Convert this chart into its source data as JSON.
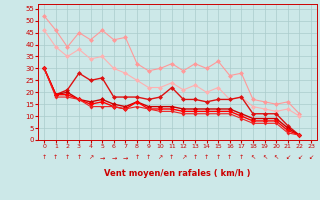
{
  "bg_color": "#cce8e8",
  "grid_color": "#aacccc",
  "xlabel": "Vent moyen/en rafales ( km/h )",
  "xlim": [
    -0.5,
    23.5
  ],
  "ylim": [
    0,
    57
  ],
  "yticks": [
    0,
    5,
    10,
    15,
    20,
    25,
    30,
    35,
    40,
    45,
    50,
    55
  ],
  "xticks": [
    0,
    1,
    2,
    3,
    4,
    5,
    6,
    7,
    8,
    9,
    10,
    11,
    12,
    13,
    14,
    15,
    16,
    17,
    18,
    19,
    20,
    21,
    22,
    23
  ],
  "series": [
    {
      "color": "#ff9999",
      "linewidth": 0.8,
      "markersize": 2.5,
      "y": [
        52,
        46,
        39,
        45,
        42,
        46,
        42,
        43,
        32,
        29,
        30,
        32,
        29,
        32,
        30,
        33,
        27,
        28,
        17,
        16,
        15,
        16,
        11
      ]
    },
    {
      "color": "#ffb0b0",
      "linewidth": 0.8,
      "markersize": 2.5,
      "y": [
        46,
        39,
        35,
        38,
        34,
        35,
        30,
        28,
        25,
        22,
        22,
        24,
        21,
        23,
        20,
        22,
        17,
        18,
        14,
        13,
        12,
        13,
        10
      ]
    },
    {
      "color": "#dd1111",
      "linewidth": 1.0,
      "markersize": 2.5,
      "y": [
        30,
        19,
        21,
        28,
        25,
        26,
        18,
        18,
        18,
        17,
        18,
        22,
        17,
        17,
        16,
        17,
        17,
        18,
        11,
        11,
        11,
        6,
        2
      ]
    },
    {
      "color": "#cc0000",
      "linewidth": 1.0,
      "markersize": 2.5,
      "y": [
        30,
        19,
        20,
        17,
        16,
        17,
        15,
        14,
        16,
        14,
        14,
        14,
        13,
        13,
        13,
        13,
        13,
        11,
        9,
        9,
        9,
        5,
        2
      ]
    },
    {
      "color": "#ff0000",
      "linewidth": 1.0,
      "markersize": 2.5,
      "y": [
        30,
        19,
        19,
        17,
        15,
        16,
        14,
        13,
        16,
        13,
        13,
        13,
        12,
        12,
        12,
        12,
        12,
        10,
        8,
        8,
        8,
        4,
        2
      ]
    },
    {
      "color": "#ee2222",
      "linewidth": 0.8,
      "markersize": 2.0,
      "y": [
        30,
        18,
        18,
        17,
        14,
        14,
        14,
        13,
        14,
        13,
        12,
        12,
        11,
        11,
        11,
        11,
        11,
        9,
        7,
        7,
        7,
        3,
        2
      ]
    }
  ],
  "arrow_chars": [
    "↑",
    "↑",
    "↑",
    "↑",
    "↗",
    "→",
    "→",
    "→",
    "↑",
    "↑",
    "↗",
    "↑",
    "↗",
    "↑",
    "↑",
    "↑",
    "↑",
    "↑",
    "↖",
    "↖",
    "↖",
    "↙",
    "↙",
    "↙"
  ],
  "tick_color": "#cc0000",
  "xlabel_color": "#cc0000"
}
